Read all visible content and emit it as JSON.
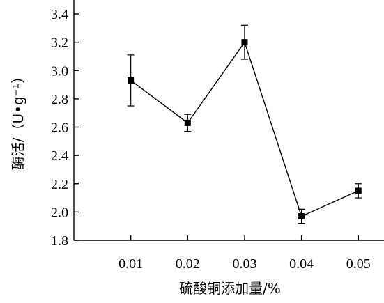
{
  "chart_data": {
    "type": "line",
    "xlabel": "硫酸铜添加量/%",
    "ylabel": "酶活/（U•g⁻¹）",
    "x": [
      0.01,
      0.02,
      0.03,
      0.04,
      0.05
    ],
    "x_tick_labels": [
      "0.01",
      "0.02",
      "0.03",
      "0.04",
      "0.05"
    ],
    "y_ticks": [
      1.8,
      2.0,
      2.2,
      2.4,
      2.6,
      2.8,
      3.0,
      3.2,
      3.4
    ],
    "y_tick_labels": [
      "1.8",
      "2.0",
      "2.2",
      "2.4",
      "2.6",
      "2.8",
      "3.0",
      "3.2",
      "3.4"
    ],
    "ylim": [
      1.8,
      3.45
    ],
    "xlim": [
      0.0,
      0.0545
    ],
    "series": [
      {
        "values": [
          2.93,
          2.63,
          3.2,
          1.97,
          2.15
        ],
        "error": [
          0.18,
          0.06,
          0.12,
          0.05,
          0.05
        ],
        "color": "#000000",
        "marker": "square"
      }
    ],
    "grid": false,
    "legend": "none"
  }
}
